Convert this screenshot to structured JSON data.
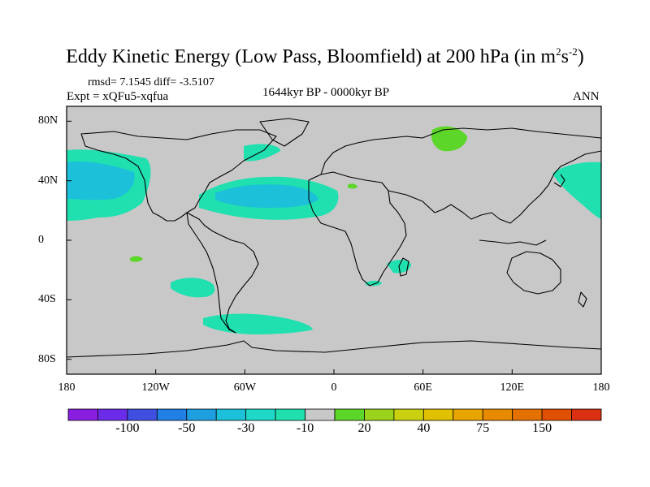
{
  "title": {
    "main": "Eddy Kinetic Energy (Low Pass, Bloomfield) at 200 hPa (in m",
    "exp1": "2",
    "mid": "s",
    "exp2": "-2",
    "close": ")"
  },
  "subtitle": {
    "stats": "rmsd= 7.1545 diff= -3.5107",
    "expt": "Expt = xQFu5-xqfua",
    "period": "1644kyr BP - 0000kyr BP",
    "season": "ANN"
  },
  "axes": {
    "x_ticks": [
      {
        "label": "180",
        "lon": -180
      },
      {
        "label": "120W",
        "lon": -120
      },
      {
        "label": "60W",
        "lon": -60
      },
      {
        "label": "0",
        "lon": 0
      },
      {
        "label": "60E",
        "lon": 60
      },
      {
        "label": "120E",
        "lon": 120
      },
      {
        "label": "180",
        "lon": 180
      }
    ],
    "y_ticks": [
      {
        "label": "80N",
        "lat": 80
      },
      {
        "label": "40N",
        "lat": 40
      },
      {
        "label": "0",
        "lat": 0
      },
      {
        "label": "40S",
        "lat": -40
      },
      {
        "label": "80S",
        "lat": -80
      }
    ]
  },
  "colorbar": {
    "colors": [
      "#8a1ee0",
      "#6a2ce8",
      "#3f50e0",
      "#2080e6",
      "#1ea0e0",
      "#1cc0d8",
      "#1ed8c8",
      "#20e0b0",
      "#c8c8c8",
      "#5cd628",
      "#9ad21c",
      "#c8d010",
      "#e0c000",
      "#e8a400",
      "#e88a00",
      "#e47000",
      "#e05000",
      "#d83010"
    ],
    "labels": [
      {
        "text": "-100",
        "index": 2
      },
      {
        "text": "-50",
        "index": 4
      },
      {
        "text": "-30",
        "index": 6
      },
      {
        "text": "-10",
        "index": 8
      },
      {
        "text": "20",
        "index": 10
      },
      {
        "text": "40",
        "index": 12
      },
      {
        "text": "75",
        "index": 14
      },
      {
        "text": "150",
        "index": 16
      }
    ]
  },
  "colors": {
    "land_ocean": "#c8c8c8",
    "negative_light": "#20e0b0",
    "negative_mid": "#1cc0d8",
    "positive_light": "#5cd628"
  },
  "chart_data": {
    "type": "heatmap",
    "projection": "cylindrical-equidistant",
    "title": "Eddy Kinetic Energy (Low Pass, Bloomfield) at 200 hPa",
    "units": "m2 s-2",
    "xlim": [
      -180,
      180
    ],
    "ylim": [
      -90,
      90
    ],
    "levels": [
      -150,
      -100,
      -75,
      -50,
      -40,
      -30,
      -20,
      -10,
      10,
      20,
      30,
      40,
      50,
      75,
      100,
      150,
      200
    ],
    "anomaly_regions": [
      {
        "name": "north-pacific-west-negative",
        "value_range": "-20 to -10",
        "lon_range": [
          -180,
          -125
        ],
        "lat_range": [
          12,
          46
        ]
      },
      {
        "name": "north-pacific-core-negative",
        "value_range": "-30 to -20",
        "lon_range": [
          -180,
          -140
        ],
        "lat_range": [
          25,
          42
        ]
      },
      {
        "name": "north-atlantic-negative",
        "value_range": "-30 to -10",
        "lon_range": [
          -88,
          0
        ],
        "lat_range": [
          12,
          43
        ]
      },
      {
        "name": "west-pacific-negative",
        "value_range": "-20 to -10",
        "lon_range": [
          145,
          180
        ],
        "lat_range": [
          12,
          48
        ]
      },
      {
        "name": "siberia-positive",
        "value_range": "10 to 20",
        "lon_range": [
          58,
          73
        ],
        "lat_range": [
          60,
          73
        ]
      },
      {
        "name": "southern-ocean-negative",
        "value_range": "-20 to -10",
        "lon_range": [
          -95,
          -15
        ],
        "lat_range": [
          -58,
          -45
        ]
      },
      {
        "name": "south-pacific-negative",
        "value_range": "-20 to -10",
        "lon_range": [
          -110,
          -75
        ],
        "lat_range": [
          -37,
          -28
        ]
      },
      {
        "name": "madagascar-negative",
        "value_range": "-20 to -10",
        "lon_range": [
          40,
          58
        ],
        "lat_range": [
          -20,
          -10
        ]
      }
    ]
  }
}
